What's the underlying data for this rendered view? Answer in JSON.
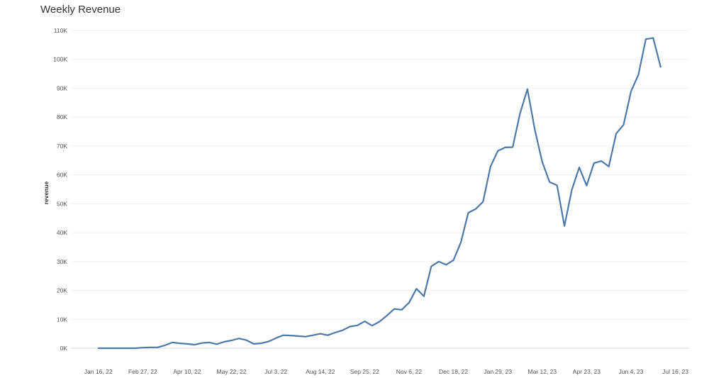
{
  "chart_data": {
    "type": "line",
    "title": "Weekly Revenue",
    "xlabel": "",
    "ylabel": "revenue",
    "ylim": [
      0,
      110000
    ],
    "xlim": [
      "2021-12-21",
      "2023-07-29"
    ],
    "grid": true,
    "y_ticks": [
      {
        "value": 0,
        "label": "0K"
      },
      {
        "value": 10000,
        "label": "10K"
      },
      {
        "value": 20000,
        "label": "20K"
      },
      {
        "value": 30000,
        "label": "30K"
      },
      {
        "value": 40000,
        "label": "40K"
      },
      {
        "value": 50000,
        "label": "50K"
      },
      {
        "value": 60000,
        "label": "60K"
      },
      {
        "value": 70000,
        "label": "70K"
      },
      {
        "value": 80000,
        "label": "80K"
      },
      {
        "value": 90000,
        "label": "90K"
      },
      {
        "value": 100000,
        "label": "100K"
      },
      {
        "value": 110000,
        "label": "110K"
      }
    ],
    "x_ticks": [
      {
        "date": "2022-01-16",
        "label": "Jan 16, 22"
      },
      {
        "date": "2022-02-27",
        "label": "Feb 27, 22"
      },
      {
        "date": "2022-04-10",
        "label": "Apr 10, 22"
      },
      {
        "date": "2022-05-22",
        "label": "May 22, 22"
      },
      {
        "date": "2022-07-03",
        "label": "Jul 3, 22"
      },
      {
        "date": "2022-08-14",
        "label": "Aug 14, 22"
      },
      {
        "date": "2022-09-25",
        "label": "Sep 25, 22"
      },
      {
        "date": "2022-11-06",
        "label": "Nov 6, 22"
      },
      {
        "date": "2022-12-18",
        "label": "Dec 18, 22"
      },
      {
        "date": "2023-01-29",
        "label": "Jan 29, 23"
      },
      {
        "date": "2023-03-12",
        "label": "Mar 12, 23"
      },
      {
        "date": "2023-04-23",
        "label": "Apr 23, 23"
      },
      {
        "date": "2023-06-04",
        "label": "Jun 4, 23"
      },
      {
        "date": "2023-07-16",
        "label": "Jul 16, 23"
      }
    ],
    "series": [
      {
        "color": "#4e79a7",
        "x": [
          "2022-01-16",
          "2022-01-23",
          "2022-01-30",
          "2022-02-06",
          "2022-02-13",
          "2022-02-20",
          "2022-02-27",
          "2022-03-06",
          "2022-03-13",
          "2022-03-20",
          "2022-03-27",
          "2022-04-03",
          "2022-04-10",
          "2022-04-17",
          "2022-04-24",
          "2022-05-01",
          "2022-05-08",
          "2022-05-15",
          "2022-05-22",
          "2022-05-29",
          "2022-06-05",
          "2022-06-12",
          "2022-06-19",
          "2022-06-26",
          "2022-07-03",
          "2022-07-10",
          "2022-07-17",
          "2022-07-24",
          "2022-07-31",
          "2022-08-07",
          "2022-08-14",
          "2022-08-21",
          "2022-08-28",
          "2022-09-04",
          "2022-09-11",
          "2022-09-18",
          "2022-09-25",
          "2022-10-02",
          "2022-10-09",
          "2022-10-16",
          "2022-10-23",
          "2022-10-30",
          "2022-11-06",
          "2022-11-13",
          "2022-11-20",
          "2022-11-27",
          "2022-12-04",
          "2022-12-11",
          "2022-12-18",
          "2022-12-25",
          "2023-01-01",
          "2023-01-08",
          "2023-01-15",
          "2023-01-22",
          "2023-01-29",
          "2023-02-05",
          "2023-02-12",
          "2023-02-19",
          "2023-02-26",
          "2023-03-05",
          "2023-03-12",
          "2023-03-19",
          "2023-03-26",
          "2023-04-02",
          "2023-04-09",
          "2023-04-16",
          "2023-04-23",
          "2023-04-30",
          "2023-05-07",
          "2023-05-14",
          "2023-05-21",
          "2023-05-28",
          "2023-06-04",
          "2023-06-11",
          "2023-06-18",
          "2023-06-25"
        ],
        "values": [
          0,
          0,
          0,
          0,
          0,
          0,
          200,
          300,
          300,
          1000,
          2000,
          1700,
          1500,
          1200,
          1800,
          2000,
          1400,
          2200,
          2700,
          3400,
          2800,
          1500,
          1700,
          2300,
          3500,
          4500,
          4400,
          4200,
          4000,
          4500,
          5000,
          4500,
          5400,
          6200,
          7500,
          7900,
          9300,
          7800,
          9200,
          11300,
          13600,
          13300,
          15800,
          20600,
          18000,
          28300,
          30000,
          28900,
          30500,
          36600,
          46900,
          48200,
          50700,
          62900,
          68300,
          69500,
          69600,
          81300,
          89700,
          75600,
          64500,
          57500,
          56400,
          42300,
          54800,
          62600,
          56300,
          64100,
          64800,
          62900,
          74300,
          77400,
          88900,
          94700,
          107000,
          107400
        ]
      },
      {
        "color": "#4e79a7",
        "x": [
          "2023-06-25",
          "2023-07-02"
        ],
        "values": [
          107400,
          97400
        ]
      }
    ]
  }
}
